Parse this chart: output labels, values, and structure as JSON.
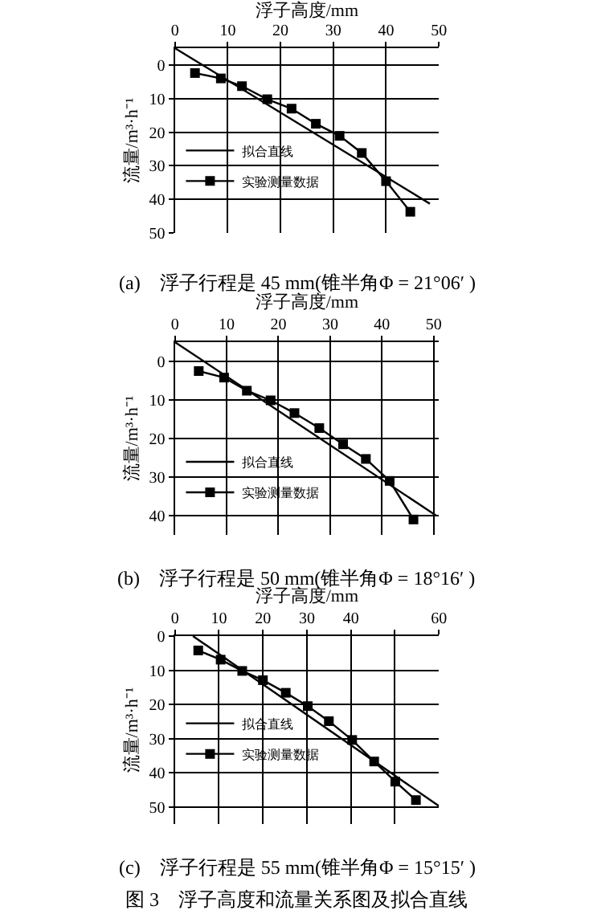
{
  "chart_data": [
    {
      "type": "line",
      "xlabel": "浮子高度/mm",
      "ylabel": "流量/m³·h⁻¹",
      "xlim": [
        0,
        50
      ],
      "xticks": [
        0,
        10,
        20,
        30,
        40,
        50
      ],
      "ylim": [
        50,
        -5
      ],
      "yticks": [
        0,
        10,
        20,
        30,
        40,
        50
      ],
      "grid": true,
      "legend": "bottom left",
      "series": [
        {
          "name": "拟合直线",
          "color": "#000000",
          "marker": "none",
          "x": [
            0,
            48.3
          ],
          "values": [
            -5,
            41.3
          ]
        },
        {
          "name": "实验测量数据",
          "color": "#000000",
          "marker": "square",
          "x": [
            3.8,
            8.7,
            12.7,
            17.5,
            22.1,
            26.7,
            31.2,
            35.4,
            40.0,
            44.6
          ],
          "values": [
            2.4,
            4.0,
            6.3,
            10.2,
            13.0,
            17.5,
            21.1,
            26.2,
            34.6,
            43.7
          ]
        }
      ],
      "annotations": [
        "(a)    浮子行程是 45 mm(锥半角Φ = 21°06′ )"
      ]
    },
    {
      "type": "line",
      "xlabel": "浮子高度/mm",
      "ylabel": "流量/m³·h⁻¹",
      "xlim": [
        0,
        51
      ],
      "xticks": [
        0,
        10,
        20,
        30,
        40,
        50
      ],
      "ylim": [
        45,
        -5
      ],
      "yticks": [
        0,
        10,
        20,
        30,
        40
      ],
      "grid": true,
      "legend": "bottom left",
      "series": [
        {
          "name": "拟合直线",
          "color": "#000000",
          "marker": "none",
          "x": [
            0,
            50.5
          ],
          "values": [
            -5,
            40.0
          ]
        },
        {
          "name": "实验测量数据",
          "color": "#000000",
          "marker": "square",
          "x": [
            4.6,
            9.5,
            13.9,
            18.5,
            23.1,
            27.9,
            32.5,
            36.9,
            41.5,
            46.1
          ],
          "values": [
            2.5,
            4.2,
            7.6,
            10.1,
            13.4,
            17.3,
            21.5,
            25.3,
            31.0,
            41.0
          ]
        }
      ],
      "annotations": [
        "(b)    浮子行程是 50 mm(锥半角Φ = 18°16′ )"
      ]
    },
    {
      "type": "line",
      "xlabel": "浮子高度/mm",
      "ylabel": "流量/m³·h⁻¹",
      "xlim": [
        0,
        60
      ],
      "xticks": [
        0,
        10,
        20,
        30,
        40,
        {
          "value": 50,
          "label": null
        },
        60
      ],
      "ylim": [
        55,
        0
      ],
      "yticks": [
        0,
        10,
        20,
        30,
        40,
        50
      ],
      "grid": true,
      "legend": "bottom left",
      "series": [
        {
          "name": "拟合直线",
          "color": "#000000",
          "marker": "none",
          "x": [
            4.1,
            60
          ],
          "values": [
            0,
            49.7
          ]
        },
        {
          "name": "实验测量数据",
          "color": "#000000",
          "marker": "square",
          "x": [
            5.3,
            10.4,
            15.3,
            20.0,
            25.2,
            30.2,
            35.0,
            40.3,
            45.3,
            50.1,
            54.8
          ],
          "values": [
            4.2,
            6.9,
            10.2,
            12.9,
            16.6,
            20.5,
            24.9,
            30.4,
            36.7,
            42.6,
            48.0
          ]
        }
      ],
      "annotations": [
        "(c)    浮子行程是 55 mm(锥半角Φ = 15°15′ )",
        "图 3    浮子高度和流量关系图及拟合直线"
      ]
    }
  ]
}
